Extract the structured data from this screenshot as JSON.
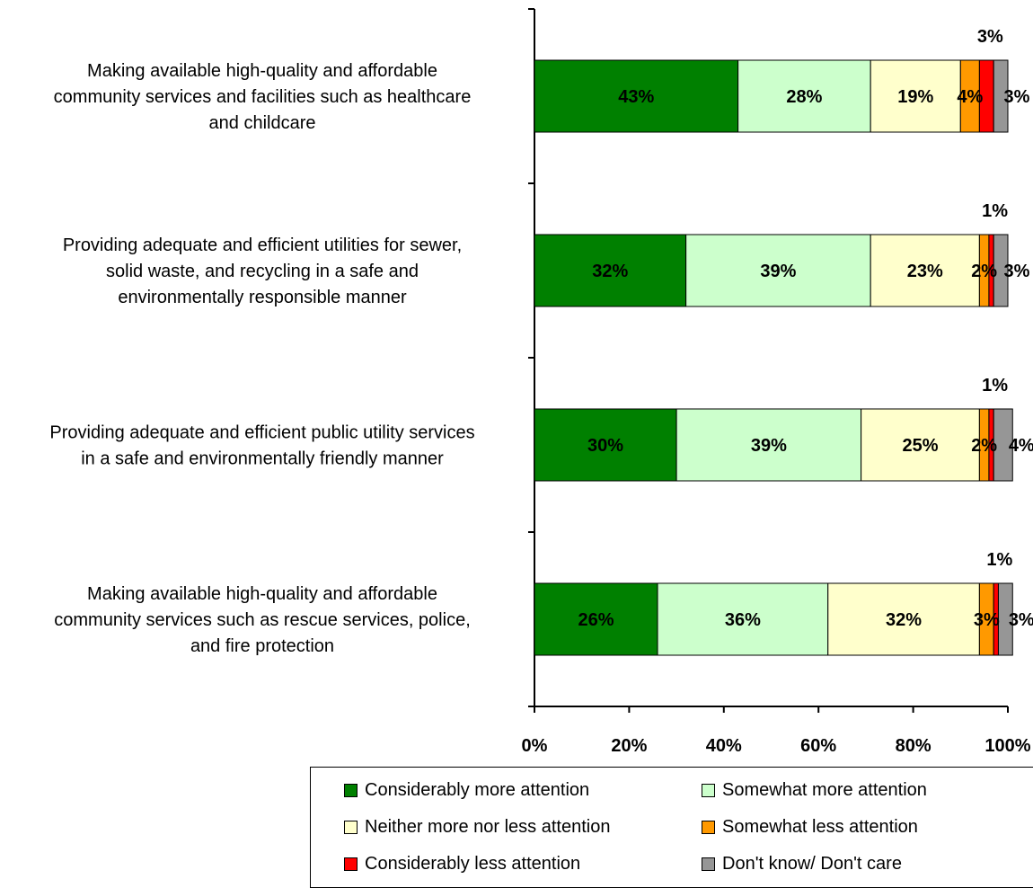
{
  "chart_data": {
    "type": "bar",
    "orientation": "horizontal",
    "stacked": true,
    "categories": [
      [
        "Making available high-quality and affordable",
        "community services and facilities such as healthcare",
        "and childcare"
      ],
      [
        "Providing adequate and efficient utilities for sewer,",
        "solid waste, and recycling in a safe and",
        "environmentally responsible manner"
      ],
      [
        "Providing adequate and efficient public utility services",
        "in a safe and environmentally friendly manner"
      ],
      [
        "Making available high-quality and affordable",
        "community services such as rescue services, police,",
        "and fire protection"
      ]
    ],
    "series": [
      {
        "name": "Considerably more attention",
        "color": "#008000",
        "values": [
          43,
          32,
          30,
          26
        ],
        "labels": [
          "43%",
          "32%",
          "30%",
          "26%"
        ]
      },
      {
        "name": "Somewhat more attention",
        "color": "#ccffcc",
        "values": [
          28,
          39,
          39,
          36
        ],
        "labels": [
          "28%",
          "39%",
          "39%",
          "36%"
        ]
      },
      {
        "name": "Neither more nor less attention",
        "color": "#ffffcc",
        "values": [
          19,
          23,
          25,
          32
        ],
        "labels": [
          "19%",
          "23%",
          "25%",
          "32%"
        ]
      },
      {
        "name": "Somewhat less attention",
        "color": "#ff9900",
        "values": [
          4,
          2,
          2,
          3
        ],
        "labels": [
          "4%",
          "2%",
          "2%",
          "3%"
        ]
      },
      {
        "name": "Considerably less attention",
        "color": "#ff0000",
        "values": [
          3,
          1,
          1,
          1
        ],
        "labels": [
          "3%",
          "1%",
          "1%",
          "1%"
        ]
      },
      {
        "name": "Don't know/ Don't care",
        "color": "#969696",
        "values": [
          3,
          3,
          4,
          3
        ],
        "labels": [
          "3%",
          "3%",
          "4%",
          "3%"
        ]
      }
    ],
    "xlim": [
      0,
      100
    ],
    "xticks": [
      "0%",
      "20%",
      "40%",
      "60%",
      "80%",
      "100%"
    ],
    "grid": false,
    "legend_position": "bottom"
  }
}
